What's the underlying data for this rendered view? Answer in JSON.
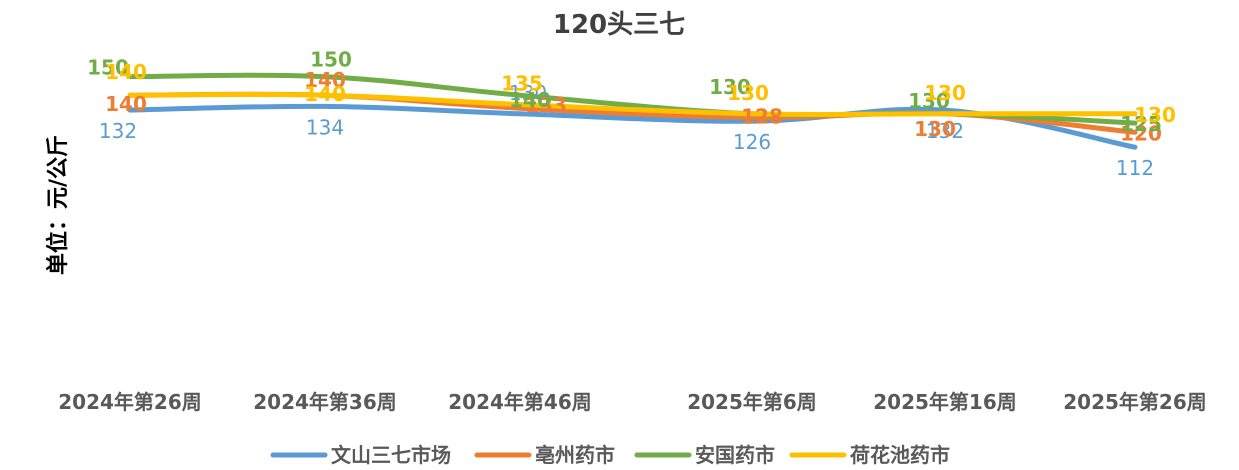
{
  "chart_data": {
    "type": "line",
    "title": "120头三七",
    "xlabel": "",
    "ylabel": "单位：元/公斤",
    "categories": [
      "2024年第26周",
      "2024年第36周",
      "2024年第46周",
      "2025年第6周",
      "2025年第16周",
      "2025年第26周"
    ],
    "ylim": [
      0,
      180
    ],
    "grid": false,
    "legend_position": "bottom",
    "smooth": true,
    "series": [
      {
        "name": "文山三七市场",
        "color": "#5B9BD5",
        "values": [
          132,
          134,
          130,
          126,
          132,
          112
        ],
        "labels": [
          "132",
          "134",
          "130",
          "126",
          "132",
          "112"
        ]
      },
      {
        "name": "亳州药市",
        "color": "#ED7D31",
        "values": [
          140,
          140,
          133,
          128,
          130,
          120
        ],
        "labels": [
          "140",
          "140",
          "133",
          "128",
          "130",
          "120"
        ]
      },
      {
        "name": "安国药市",
        "color": "#70AD47",
        "values": [
          150,
          150,
          140,
          130,
          130,
          125
        ],
        "labels": [
          "150",
          "150",
          "140",
          "130",
          "130",
          "125"
        ]
      },
      {
        "name": "荷花池药市",
        "color": "#FFC000",
        "values": [
          140,
          140,
          135,
          130,
          130,
          130
        ],
        "labels": [
          "140",
          "140",
          "135",
          "130",
          "130",
          "130"
        ]
      }
    ]
  }
}
